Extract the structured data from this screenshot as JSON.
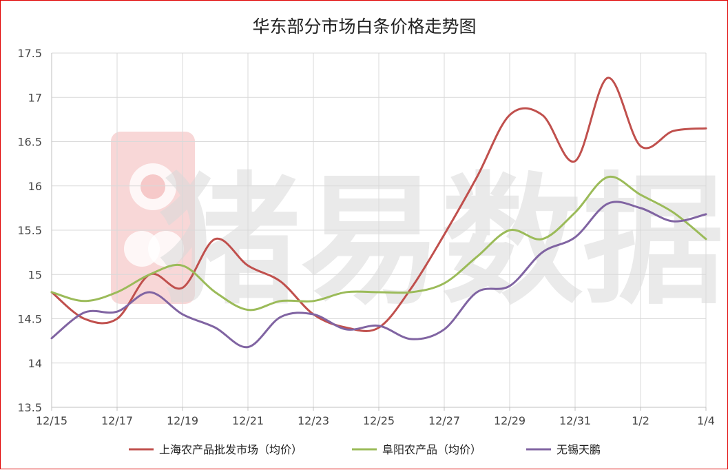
{
  "chart_data": {
    "type": "line",
    "title": "华东部分市场白条价格走势图",
    "xlabel": "",
    "ylabel": "",
    "categories": [
      "12/15",
      "12/16",
      "12/17",
      "12/18",
      "12/19",
      "12/20",
      "12/21",
      "12/22",
      "12/23",
      "12/24",
      "12/25",
      "12/26",
      "12/27",
      "12/28",
      "12/29",
      "12/30",
      "12/31",
      "1/1",
      "1/2",
      "1/3",
      "1/4"
    ],
    "x_tick_labels": [
      "12/15",
      "12/17",
      "12/19",
      "12/21",
      "12/23",
      "12/25",
      "12/27",
      "12/29",
      "12/31",
      "1/2",
      "1/4"
    ],
    "ylim": [
      13.5,
      17.5
    ],
    "y_tick_labels": [
      "13.5",
      "14",
      "14.5",
      "15",
      "15.5",
      "16",
      "16.5",
      "17",
      "17.5"
    ],
    "y_ticks": [
      13.5,
      14,
      14.5,
      15,
      15.5,
      16,
      16.5,
      17,
      17.5
    ],
    "grid": true,
    "legend_position": "bottom",
    "series": [
      {
        "name": "上海农产品批发市场（均价）",
        "color": "#c0504d",
        "values": [
          14.8,
          14.5,
          14.5,
          15.0,
          14.85,
          15.4,
          15.1,
          14.92,
          14.55,
          14.4,
          14.4,
          14.85,
          15.45,
          16.1,
          16.8,
          16.8,
          16.28,
          17.22,
          16.45,
          16.62,
          16.65
        ]
      },
      {
        "name": "阜阳农产品（均价）",
        "color": "#9bbb59",
        "values": [
          14.8,
          14.7,
          14.8,
          15.0,
          15.1,
          14.8,
          14.6,
          14.7,
          14.7,
          14.8,
          14.8,
          14.8,
          14.9,
          15.2,
          15.5,
          15.4,
          15.7,
          16.1,
          15.9,
          15.7,
          15.4
        ]
      },
      {
        "name": "无锡天鹏",
        "color": "#8064a2",
        "values": [
          14.28,
          14.57,
          14.58,
          14.8,
          14.55,
          14.4,
          14.18,
          14.52,
          14.55,
          14.38,
          14.42,
          14.27,
          14.38,
          14.8,
          14.87,
          15.25,
          15.42,
          15.8,
          15.75,
          15.6,
          15.68
        ]
      }
    ]
  },
  "watermark": {
    "text": "猪易数据",
    "color": "#d9d9d9",
    "logo_color": "#f6c9c9"
  }
}
